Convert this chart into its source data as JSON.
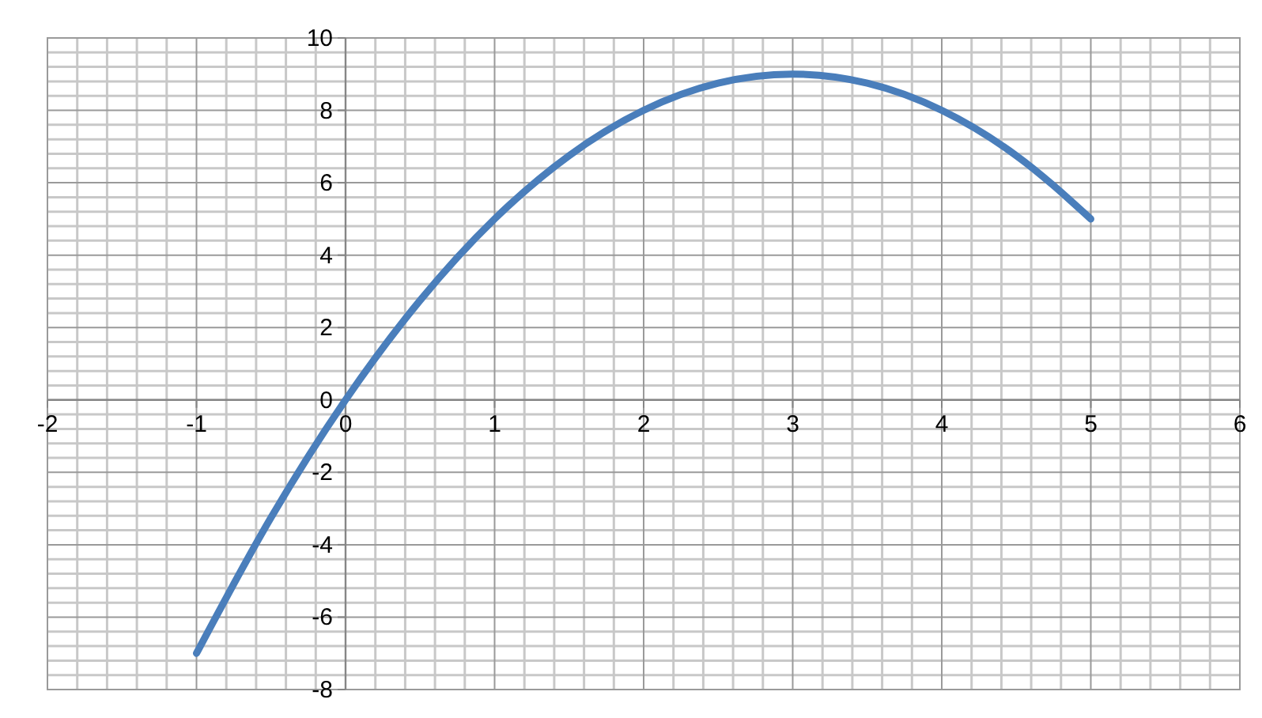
{
  "chart_data": {
    "type": "line",
    "x": [
      -1,
      -0.5,
      0,
      0.5,
      1,
      1.5,
      2,
      2.5,
      3,
      3.5,
      4,
      4.5,
      5
    ],
    "series": [
      {
        "color": "#4a7ebb",
        "values": [
          -7,
          -3.25,
          0,
          2.75,
          5,
          6.75,
          8,
          8.75,
          9,
          8.75,
          8,
          6.75,
          5
        ]
      }
    ],
    "xlim": [
      -2,
      6
    ],
    "xticks": [
      -2,
      -1,
      0,
      1,
      2,
      3,
      4,
      5,
      6
    ],
    "ylim": [
      -8,
      10
    ],
    "yticks": [
      -8,
      -6,
      -4,
      -2,
      0,
      2,
      4,
      6,
      8,
      10
    ],
    "grid": true,
    "marker": "none",
    "line_style": "solid"
  }
}
